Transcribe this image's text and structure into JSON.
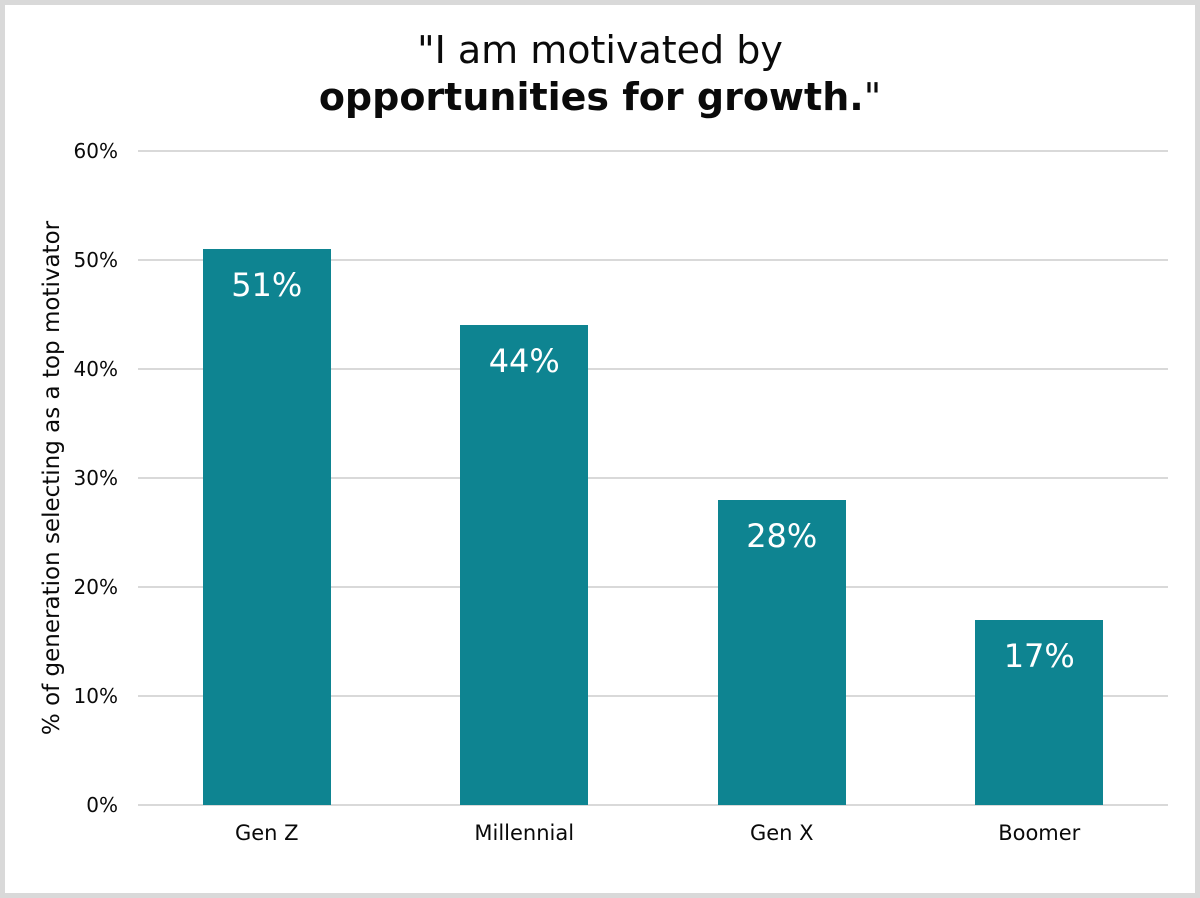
{
  "chart_data": {
    "type": "bar",
    "title": {
      "line1": "\"I am motivated by",
      "line2_bold": "opportunities for growth.",
      "line2_suffix": "\""
    },
    "categories": [
      "Gen Z",
      "Millennial",
      "Gen X",
      "Boomer"
    ],
    "values": [
      51,
      44,
      28,
      17
    ],
    "value_labels": [
      "51%",
      "44%",
      "28%",
      "17%"
    ],
    "ylabel": "% of generation selecting as a top motivator",
    "xlabel": "",
    "ylim": [
      0,
      60
    ],
    "ytick_step": 10,
    "ytick_labels": [
      "0%",
      "10%",
      "20%",
      "30%",
      "40%",
      "50%",
      "60%"
    ],
    "grid": true,
    "legend": "none",
    "colors": {
      "bar": "#0e8491",
      "gridline": "#d9d9d9",
      "frame_border": "#d9d9d9",
      "value_label_text": "#ffffff",
      "text": "#0a0a0a"
    }
  }
}
